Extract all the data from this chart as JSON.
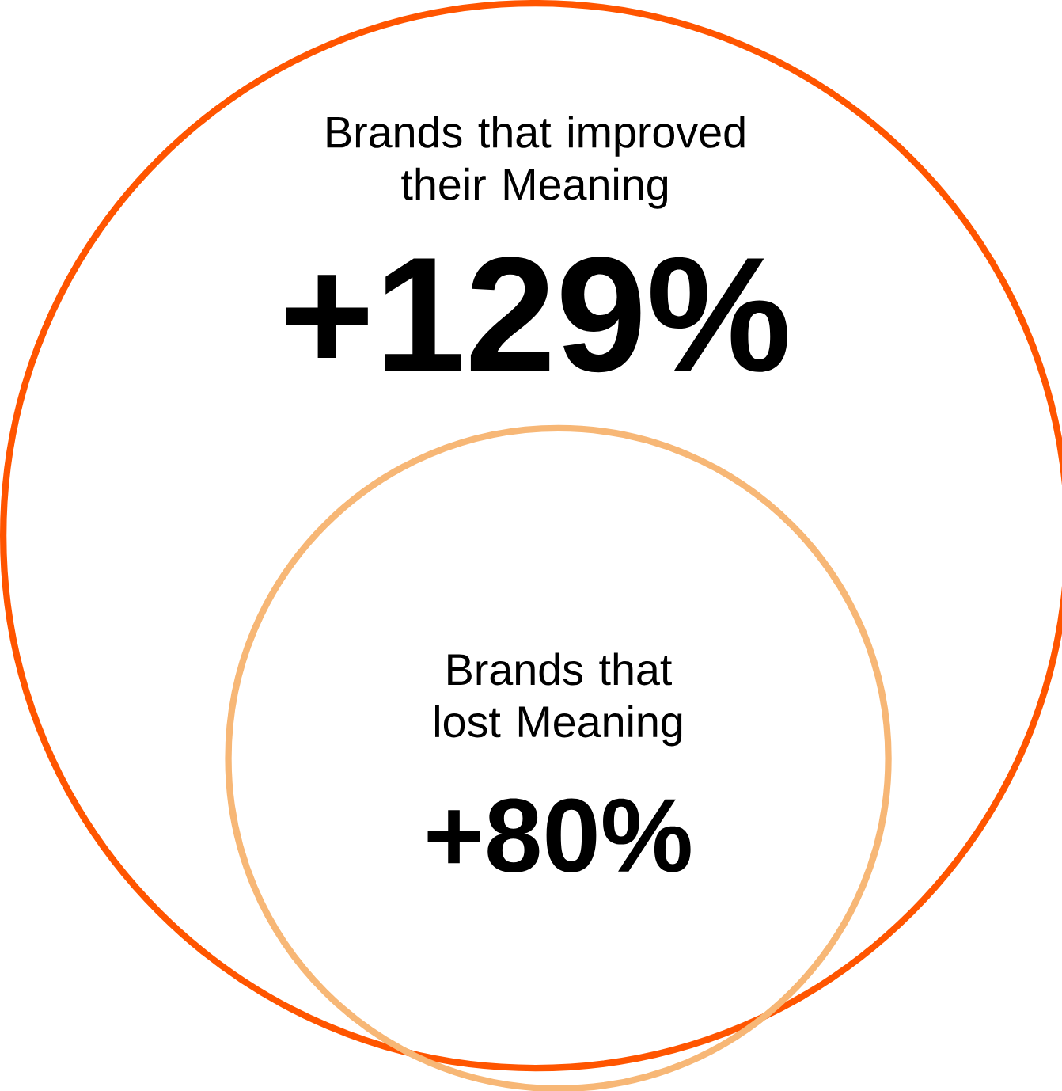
{
  "chart_data": {
    "type": "other",
    "categories": [
      "Brands that improved their Meaning",
      "Brands that lost Meaning"
    ],
    "values": [
      129,
      80
    ],
    "value_labels": [
      "+129%",
      "+80%"
    ],
    "colors": [
      "#ff5500",
      "#f7b776"
    ]
  }
}
